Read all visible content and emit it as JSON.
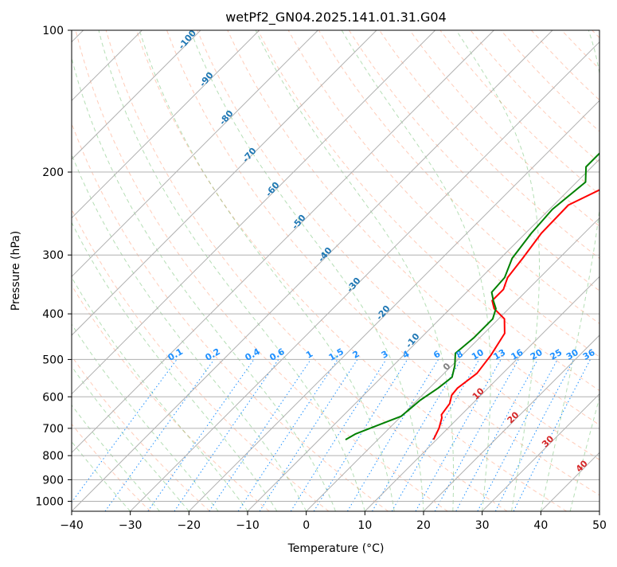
{
  "chart_data": {
    "type": "line",
    "title": "wetPf2_GN04.2025.141.01.31.G04",
    "xlabel": "Temperature (°C)",
    "ylabel": "Pressure (hPa)",
    "xlim": [
      -40,
      50
    ],
    "ylim": [
      1050,
      100
    ],
    "y_scale": "log",
    "x_ticks": [
      -40,
      -30,
      -20,
      -10,
      0,
      10,
      20,
      30,
      40,
      50
    ],
    "y_ticks": [
      100,
      200,
      300,
      400,
      500,
      600,
      700,
      800,
      900,
      1000
    ],
    "grid": true,
    "skew_temperature_isotherms": true,
    "series": [
      {
        "color": "#ff0000",
        "x": [
          9.5,
          8.5,
          7.2,
          6.6,
          6.1,
          5.0,
          4.8,
          5.6,
          4.9,
          3.5,
          1.0,
          -2.5,
          -4.2,
          -4.2,
          -5.5,
          -6.2,
          -7.3,
          -7.5,
          -4.2,
          1.5,
          4.0,
          6.0,
          8.5,
          12.0,
          14.8,
          17.5,
          19.5
        ],
        "y": [
          740,
          700,
          665,
          655,
          620,
          595,
          575,
          535,
          490,
          440,
          410,
          390,
          375,
          355,
          335,
          305,
          270,
          235,
          215,
          195,
          180,
          165,
          150,
          135,
          125,
          110,
          100
        ]
      },
      {
        "color": "#008000",
        "x": [
          -5.5,
          -4.8,
          -2.5,
          0.0,
          0.2,
          0.5,
          1.5,
          2.0,
          0.5,
          -1.5,
          -1.0,
          -1.0,
          -2.2,
          -4.0,
          -5.7,
          -6.0,
          -8.0,
          -9.0,
          -9.5,
          -8.5,
          -11.0,
          -11.0,
          -10.5,
          -11.5,
          -10.0,
          -9.5,
          -6.0,
          -2.0
        ],
        "y": [
          740,
          720,
          690,
          660,
          640,
          610,
          575,
          545,
          515,
          485,
          450,
          410,
          390,
          375,
          360,
          335,
          305,
          270,
          240,
          210,
          195,
          175,
          160,
          145,
          130,
          120,
          110,
          100
        ]
      }
    ],
    "isotherm_labels": [
      "0",
      "10",
      "20",
      "30",
      "40"
    ],
    "dry_adiabat_labels": [
      "-100",
      "-90",
      "-80",
      "-70",
      "-60",
      "-50",
      "-40",
      "-30",
      "-20",
      "-10"
    ],
    "mixing_ratio_labels": [
      "0.1",
      "0.2",
      "0.4",
      "0.6",
      "1",
      "1.5",
      "2",
      "3",
      "4",
      "6",
      "8",
      "10",
      "13",
      "16",
      "20",
      "25",
      "30",
      "36"
    ],
    "colors": {
      "temperature": "#ff0000",
      "dewpoint": "#008000",
      "isotherm_label": "#d62728",
      "dry_adiabat_label": "#1f77b4",
      "mixing_ratio_label": "#1e90ff",
      "dry_adiabat_line": "#ff7f50",
      "moist_adiabat_line": "#2ca02c",
      "mixing_ratio_line": "#1e90ff",
      "grid": "#b0b0b0"
    }
  }
}
